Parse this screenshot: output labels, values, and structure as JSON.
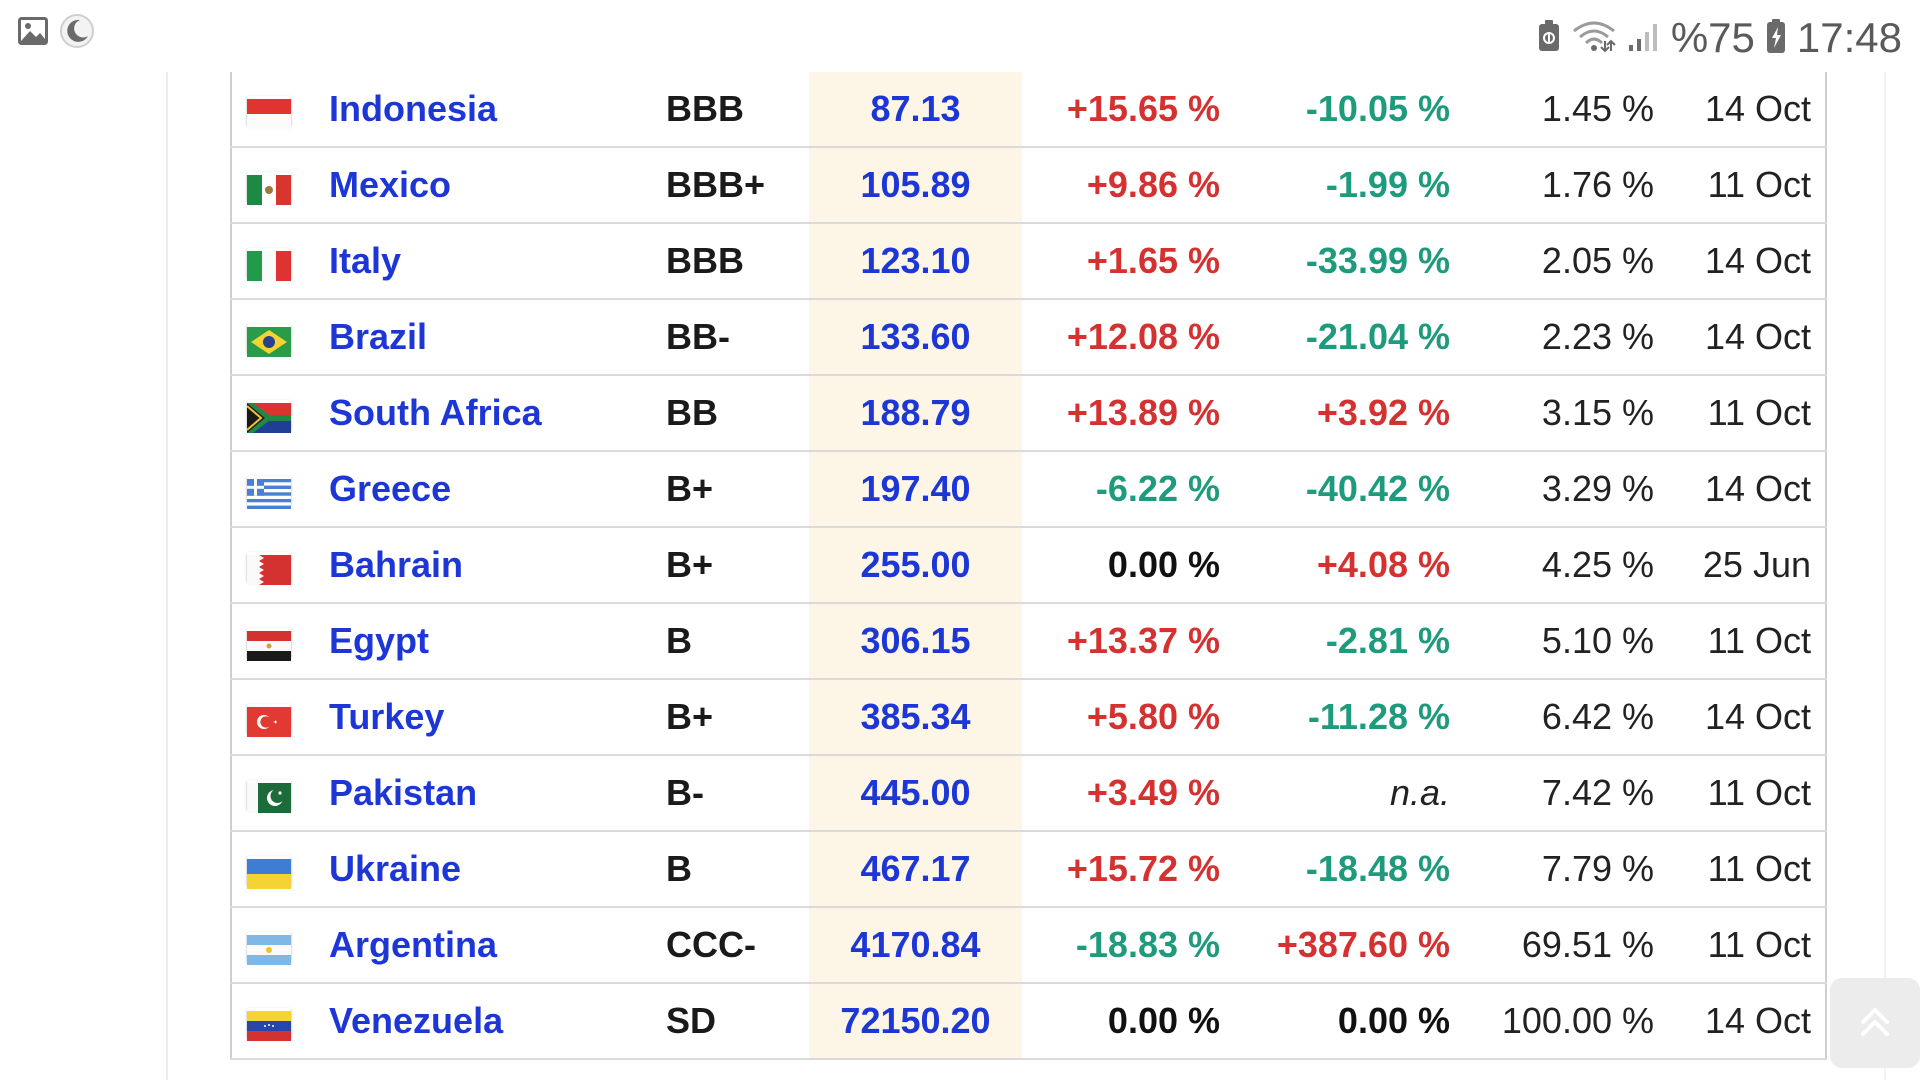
{
  "status_bar": {
    "left_icons": [
      "image-icon",
      "moon-icon"
    ],
    "right_icons": [
      "battery-saver-icon",
      "wifi-icon",
      "signal-icon",
      "battery-icon"
    ],
    "battery_text": "%75",
    "time": "17:48"
  },
  "table": {
    "rows": [
      {
        "country": "Indonesia",
        "flag": "indonesia-flag",
        "rating": "BBB",
        "cds": "87.13",
        "change1": "+15.65 %",
        "change1_dir": "pos",
        "change2": "-10.05 %",
        "change2_dir": "neg",
        "prob": "1.45 %",
        "date": "14 Oct"
      },
      {
        "country": "Mexico",
        "flag": "mexico-flag",
        "rating": "BBB+",
        "cds": "105.89",
        "change1": "+9.86 %",
        "change1_dir": "pos",
        "change2": "-1.99 %",
        "change2_dir": "neg",
        "prob": "1.76 %",
        "date": "11 Oct"
      },
      {
        "country": "Italy",
        "flag": "italy-flag",
        "rating": "BBB",
        "cds": "123.10",
        "change1": "+1.65 %",
        "change1_dir": "pos",
        "change2": "-33.99 %",
        "change2_dir": "neg",
        "prob": "2.05 %",
        "date": "14 Oct"
      },
      {
        "country": "Brazil",
        "flag": "brazil-flag",
        "rating": "BB-",
        "cds": "133.60",
        "change1": "+12.08 %",
        "change1_dir": "pos",
        "change2": "-21.04 %",
        "change2_dir": "neg",
        "prob": "2.23 %",
        "date": "14 Oct"
      },
      {
        "country": "South Africa",
        "flag": "south-africa-flag",
        "rating": "BB",
        "cds": "188.79",
        "change1": "+13.89 %",
        "change1_dir": "pos",
        "change2": "+3.92 %",
        "change2_dir": "pos",
        "prob": "3.15 %",
        "date": "11 Oct"
      },
      {
        "country": "Greece",
        "flag": "greece-flag",
        "rating": "B+",
        "cds": "197.40",
        "change1": "-6.22 %",
        "change1_dir": "neg",
        "change2": "-40.42 %",
        "change2_dir": "neg",
        "prob": "3.29 %",
        "date": "14 Oct"
      },
      {
        "country": "Bahrain",
        "flag": "bahrain-flag",
        "rating": "B+",
        "cds": "255.00",
        "change1": "0.00 %",
        "change1_dir": "zero",
        "change2": "+4.08 %",
        "change2_dir": "pos",
        "prob": "4.25 %",
        "date": "25 Jun"
      },
      {
        "country": "Egypt",
        "flag": "egypt-flag",
        "rating": "B",
        "cds": "306.15",
        "change1": "+13.37 %",
        "change1_dir": "pos",
        "change2": "-2.81 %",
        "change2_dir": "neg",
        "prob": "5.10 %",
        "date": "11 Oct"
      },
      {
        "country": "Turkey",
        "flag": "turkey-flag",
        "rating": "B+",
        "cds": "385.34",
        "change1": "+5.80 %",
        "change1_dir": "pos",
        "change2": "-11.28 %",
        "change2_dir": "neg",
        "prob": "6.42 %",
        "date": "14 Oct"
      },
      {
        "country": "Pakistan",
        "flag": "pakistan-flag",
        "rating": "B-",
        "cds": "445.00",
        "change1": "+3.49 %",
        "change1_dir": "pos",
        "change2": "n.a.",
        "change2_dir": "na",
        "prob": "7.42 %",
        "date": "11 Oct"
      },
      {
        "country": "Ukraine",
        "flag": "ukraine-flag",
        "rating": "B",
        "cds": "467.17",
        "change1": "+15.72 %",
        "change1_dir": "pos",
        "change2": "-18.48 %",
        "change2_dir": "neg",
        "prob": "7.79 %",
        "date": "11 Oct"
      },
      {
        "country": "Argentina",
        "flag": "argentina-flag",
        "rating": "CCC-",
        "cds": "4170.84",
        "change1": "-18.83 %",
        "change1_dir": "neg",
        "change2": "+387.60 %",
        "change2_dir": "pos",
        "prob": "69.51 %",
        "date": "11 Oct"
      },
      {
        "country": "Venezuela",
        "flag": "venezuela-flag",
        "rating": "SD",
        "cds": "72150.20",
        "change1": "0.00 %",
        "change1_dir": "zero",
        "change2": "0.00 %",
        "change2_dir": "zero",
        "prob": "100.00 %",
        "date": "14 Oct"
      }
    ]
  },
  "scroll_top_button": {
    "icon": "double-chevron-up-icon"
  },
  "colors": {
    "country_link": "#1c37d6",
    "positive": "#d43131",
    "negative": "#1e9a7c",
    "cds_column_bg": "#fdf5e6",
    "row_border": "#dadada"
  }
}
